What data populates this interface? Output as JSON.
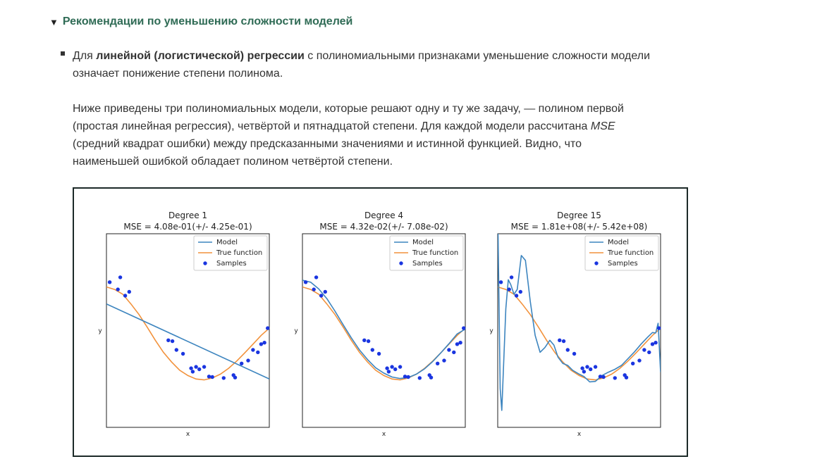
{
  "section": {
    "title": "Рекомендации по уменьшению сложности моделей",
    "p1_pre": "Для ",
    "p1_bold": "линейной (логистической) регрессии",
    "p1_post_line1": " с полиномиальными признаками уменьшение сложности модели",
    "p1_line2": "означает понижение степени полинома.",
    "p2_line1": "Ниже приведены три полиномиальных модели, которые решают одну и ту же задачу, — полином первой",
    "p2_line2_pre": "(простая линейная регрессия), четвёртой и пятнадцатой степени. Для каждой модели рассчитана ",
    "p2_line2_em": "MSE",
    "p2_line3": "(средний квадрат ошибки) между предсказанными значениями и истинной функцией. Видно, что",
    "p2_line4": "наименьшей ошибкой обладает полином четвёртой степени."
  },
  "colors": {
    "model": "#3d85bf",
    "true_function": "#f2923c",
    "samples": "#1a35e0",
    "accent": "#2f6b55"
  },
  "chart_data": [
    {
      "type": "line",
      "title": "Degree 1",
      "subtitle": "MSE = 4.08e-01(+/- 4.25e-01)",
      "xlabel": "x",
      "ylabel": "y",
      "xlim": [
        0,
        1
      ],
      "ylim": [
        -2,
        2
      ],
      "legend": {
        "position": "top-right",
        "entries": [
          "Model",
          "True function",
          "Samples"
        ]
      },
      "model_curve": [
        [
          0,
          0.55
        ],
        [
          1,
          -1.0
        ]
      ]
    },
    {
      "type": "line",
      "title": "Degree 4",
      "subtitle": "MSE = 4.32e-02(+/- 7.08e-02)",
      "xlabel": "x",
      "ylabel": "y",
      "xlim": [
        0,
        1
      ],
      "ylim": [
        -2,
        2
      ],
      "legend": {
        "position": "top-right",
        "entries": [
          "Model",
          "True function",
          "Samples"
        ]
      },
      "model_curve": [
        [
          0,
          1.04
        ],
        [
          0.05,
          1.0
        ],
        [
          0.1,
          0.86
        ],
        [
          0.15,
          0.66
        ],
        [
          0.2,
          0.4
        ],
        [
          0.25,
          0.12
        ],
        [
          0.3,
          -0.15
        ],
        [
          0.35,
          -0.4
        ],
        [
          0.4,
          -0.6
        ],
        [
          0.45,
          -0.77
        ],
        [
          0.5,
          -0.88
        ],
        [
          0.55,
          -0.96
        ],
        [
          0.6,
          -0.99
        ],
        [
          0.65,
          -0.97
        ],
        [
          0.7,
          -0.9
        ],
        [
          0.75,
          -0.79
        ],
        [
          0.8,
          -0.64
        ],
        [
          0.85,
          -0.46
        ],
        [
          0.9,
          -0.27
        ],
        [
          0.95,
          -0.07
        ],
        [
          1,
          0.03
        ]
      ]
    },
    {
      "type": "line",
      "title": "Degree 15",
      "subtitle": "MSE = 1.81e+08(+/- 5.42e+08)",
      "xlabel": "x",
      "ylabel": "y",
      "xlim": [
        0,
        1
      ],
      "ylim": [
        -2,
        2
      ],
      "legend": {
        "position": "top-right",
        "entries": [
          "Model",
          "True function",
          "Samples"
        ]
      },
      "model_curve": [
        [
          0.002,
          2.0
        ],
        [
          0.015,
          -1.2
        ],
        [
          0.025,
          -1.65
        ],
        [
          0.035,
          -0.8
        ],
        [
          0.05,
          0.45
        ],
        [
          0.065,
          1.05
        ],
        [
          0.08,
          0.95
        ],
        [
          0.1,
          0.75
        ],
        [
          0.12,
          0.85
        ],
        [
          0.145,
          1.55
        ],
        [
          0.17,
          1.45
        ],
        [
          0.2,
          0.6
        ],
        [
          0.23,
          -0.1
        ],
        [
          0.26,
          -0.45
        ],
        [
          0.29,
          -0.35
        ],
        [
          0.32,
          -0.2
        ],
        [
          0.345,
          -0.3
        ],
        [
          0.37,
          -0.55
        ],
        [
          0.4,
          -0.68
        ],
        [
          0.43,
          -0.72
        ],
        [
          0.46,
          -0.82
        ],
        [
          0.5,
          -0.9
        ],
        [
          0.53,
          -0.95
        ],
        [
          0.565,
          -1.06
        ],
        [
          0.6,
          -1.05
        ],
        [
          0.64,
          -0.93
        ],
        [
          0.68,
          -0.86
        ],
        [
          0.72,
          -0.8
        ],
        [
          0.76,
          -0.72
        ],
        [
          0.8,
          -0.58
        ],
        [
          0.84,
          -0.44
        ],
        [
          0.88,
          -0.28
        ],
        [
          0.92,
          -0.14
        ],
        [
          0.95,
          -0.04
        ],
        [
          0.97,
          -0.05
        ],
        [
          0.985,
          0.15
        ],
        [
          1.0,
          -0.86
        ]
      ]
    }
  ],
  "shared_series": {
    "true_function": [
      [
        0,
        0.9
      ],
      [
        0.05,
        0.85
      ],
      [
        0.1,
        0.75
      ],
      [
        0.15,
        0.55
      ],
      [
        0.2,
        0.33
      ],
      [
        0.25,
        0.07
      ],
      [
        0.3,
        -0.2
      ],
      [
        0.35,
        -0.45
      ],
      [
        0.4,
        -0.65
      ],
      [
        0.45,
        -0.82
      ],
      [
        0.5,
        -0.93
      ],
      [
        0.55,
        -1.0
      ],
      [
        0.6,
        -1.02
      ],
      [
        0.65,
        -0.98
      ],
      [
        0.7,
        -0.9
      ],
      [
        0.75,
        -0.78
      ],
      [
        0.8,
        -0.63
      ],
      [
        0.85,
        -0.46
      ],
      [
        0.9,
        -0.28
      ],
      [
        0.95,
        -0.1
      ],
      [
        1,
        0.05
      ]
    ],
    "samples": [
      [
        0.02,
        1.0
      ],
      [
        0.07,
        0.85
      ],
      [
        0.085,
        1.1
      ],
      [
        0.115,
        0.72
      ],
      [
        0.14,
        0.8
      ],
      [
        0.38,
        -0.2
      ],
      [
        0.405,
        -0.22
      ],
      [
        0.43,
        -0.4
      ],
      [
        0.47,
        -0.48
      ],
      [
        0.52,
        -0.78
      ],
      [
        0.53,
        -0.85
      ],
      [
        0.55,
        -0.75
      ],
      [
        0.57,
        -0.8
      ],
      [
        0.6,
        -0.75
      ],
      [
        0.63,
        -0.95
      ],
      [
        0.65,
        -0.96
      ],
      [
        0.72,
        -0.98
      ],
      [
        0.78,
        -0.92
      ],
      [
        0.79,
        -0.97
      ],
      [
        0.83,
        -0.68
      ],
      [
        0.87,
        -0.62
      ],
      [
        0.9,
        -0.4
      ],
      [
        0.93,
        -0.45
      ],
      [
        0.95,
        -0.28
      ],
      [
        0.97,
        -0.25
      ],
      [
        0.99,
        0.05
      ]
    ]
  }
}
